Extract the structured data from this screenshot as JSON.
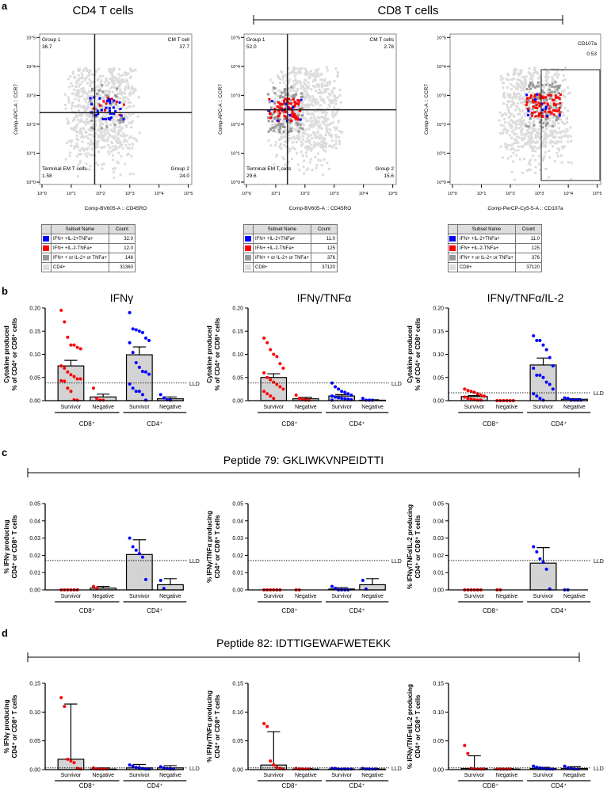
{
  "panel_letters": [
    "a",
    "b",
    "c",
    "d"
  ],
  "section_a": {
    "cd4_title": "CD4 T cells",
    "cd8_title": "CD8 T cells",
    "flow_plots": [
      {
        "y_label": "Comp-APC-A :: CCR7",
        "x_label": "Comp-BV605-A :: CD45RO",
        "quadrants": [
          {
            "name": "Group 1",
            "value": "36.7"
          },
          {
            "name": "CM T cell",
            "value": "37.7"
          },
          {
            "name": "Terminal EM T cells",
            "value": "1.58"
          },
          {
            "name": "Group 2",
            "value": "24.0"
          }
        ],
        "gate_x_log": 1.8,
        "gate_y_log": 2.4,
        "table": {
          "headers": [
            "Subset Name",
            "Count"
          ],
          "rows": [
            {
              "name": "IFN+ +IL-2+TNFa+",
              "count": "32.0",
              "color": "#0000ff"
            },
            {
              "name": "IFN+ +IL-2-TNFa+",
              "count": "12.0",
              "color": "#ff0000"
            },
            {
              "name": "IFN+ + or IL-2+ or TNFa+",
              "count": "146",
              "color": "#999999"
            },
            {
              "name": "CD4+",
              "count": "31360",
              "color": "#dddddd"
            }
          ]
        }
      },
      {
        "y_label": "Comp-APC-A :: CCR7",
        "x_label": "Comp-BV605-A :: CD45RO",
        "quadrants": [
          {
            "name": "Group 1",
            "value": "52.0"
          },
          {
            "name": "CM T cells",
            "value": "2.78"
          },
          {
            "name": "Terminal EM T cells",
            "value": "29.6"
          },
          {
            "name": "Group 2",
            "value": "15.6"
          }
        ],
        "gate_x_log": 1.4,
        "gate_y_log": 2.5,
        "table": {
          "headers": [
            "Subset Name",
            "Count"
          ],
          "rows": [
            {
              "name": "IFN+ +IL-2+TNFa+",
              "count": "11.0",
              "color": "#0000ff"
            },
            {
              "name": "IFN+ +IL-2-TNFa+",
              "count": "125",
              "color": "#ff0000"
            },
            {
              "name": "IFN+ + or IL-2+ or TNFa+",
              "count": "376",
              "color": "#999999"
            },
            {
              "name": "CD8+",
              "count": "37120",
              "color": "#dddddd"
            }
          ]
        }
      },
      {
        "y_label": "Comp-APC-A :: CCR7",
        "x_label": "Comp-PerCP-Cy5-5-A :: CD107a",
        "gate": {
          "name": "CD107a",
          "value": "0.53"
        },
        "table": {
          "headers": [
            "Subset Name",
            "Count"
          ],
          "rows": [
            {
              "name": "IFN+ +IL-2+TNFa+",
              "count": "11.0",
              "color": "#0000ff"
            },
            {
              "name": "IFN+ +IL-2-TNFa+",
              "count": "125",
              "color": "#ff0000"
            },
            {
              "name": "IFN+ + or IL-2+ or TNFa+",
              "count": "376",
              "color": "#999999"
            },
            {
              "name": "CD8+",
              "count": "37120",
              "color": "#dddddd"
            }
          ]
        }
      }
    ],
    "axis_ticks": [
      "10^0",
      "10^1",
      "10^2",
      "10^3",
      "10^4",
      "10^5"
    ]
  },
  "section_c_title": "Peptide 79: GKLIWKVNPEIDTTI",
  "section_d_title": "Peptide 82: IDTTIGEWAFWETEKK",
  "lld_label": "LLD",
  "categories": [
    "Survivor",
    "Negative",
    "Survivor",
    "Negative"
  ],
  "groups": [
    "CD8⁺",
    "CD4⁺"
  ],
  "colors": {
    "cd8": "#ff0000",
    "cd4": "#0000ff",
    "bar": "#d3d3d3",
    "gate_gray": "#999999",
    "background_cells": "#dcdcdc"
  },
  "chart_data": [
    {
      "type": "bar",
      "id": "b-ifng",
      "title": "IFNγ",
      "ylabel": [
        "Cytokine produced",
        "% of CD4⁺ or CD8⁺ cells"
      ],
      "ylim": [
        0,
        0.2
      ],
      "yticks": [
        "0.00",
        "0.05",
        "0.10",
        "0.15",
        "0.20"
      ],
      "lld": 0.038,
      "values": [
        0.075,
        0.008,
        0.099,
        0.004
      ],
      "errors": [
        0.012,
        0.006,
        0.017,
        0.004
      ],
      "points": [
        [
          0.195,
          0.17,
          0.137,
          0.12,
          0.12,
          0.115,
          0.112,
          0.075,
          0.07,
          0.062,
          0.056,
          0.052,
          0.047,
          0.047,
          0.043,
          0.042,
          0.027,
          0.02,
          0.002,
          0.001
        ],
        [
          0.027,
          0.005,
          0.001,
          0.001
        ],
        [
          0.19,
          0.155,
          0.153,
          0.15,
          0.147,
          0.135,
          0.13,
          0.125,
          0.104,
          0.082,
          0.072,
          0.063,
          0.062,
          0.057,
          0.036,
          0.027,
          0.02,
          0.02,
          0.013,
          0.001
        ],
        [
          0.013,
          0.006,
          0.002,
          0.001
        ]
      ]
    },
    {
      "type": "bar",
      "id": "b-ifng-tnfa",
      "title": "IFNγ/TNFα",
      "ylabel": [
        "Cytokine produced",
        "% of CD4⁺ or CD8⁺ cells"
      ],
      "ylim": [
        0,
        0.2
      ],
      "yticks": [
        "0.00",
        "0.05",
        "0.10",
        "0.15",
        "0.20"
      ],
      "lld": 0.038,
      "values": [
        0.05,
        0.004,
        0.01,
        0.001
      ],
      "errors": [
        0.008,
        0.003,
        0.003,
        0.001
      ],
      "points": [
        [
          0.135,
          0.125,
          0.11,
          0.1,
          0.095,
          0.08,
          0.07,
          0.06,
          0.05,
          0.045,
          0.04,
          0.035,
          0.03,
          0.025,
          0.02,
          0.015,
          0.01,
          0.005
        ],
        [
          0.012,
          0.005,
          0.002,
          0.001,
          0.001
        ],
        [
          0.038,
          0.03,
          0.025,
          0.02,
          0.018,
          0.015,
          0.012,
          0.01,
          0.008,
          0.006,
          0.005,
          0.004,
          0.003,
          0.002,
          0.001
        ],
        [
          0.005,
          0.001,
          0.001,
          0.001
        ]
      ]
    },
    {
      "type": "bar",
      "id": "b-ifng-tnfa-il2",
      "title": "IFNγ/TNFα/IL-2",
      "ylabel": [
        "Cytokine produced",
        "% of CD4⁺ or CD8⁺ cells"
      ],
      "ylim": [
        0,
        0.2
      ],
      "yticks": [
        "0.00",
        "0.05",
        "0.10",
        "0.15",
        "0.20"
      ],
      "lld": 0.017,
      "values": [
        0.009,
        0.0,
        0.077,
        0.003
      ],
      "errors": [
        0.002,
        0.0,
        0.015,
        0.001
      ],
      "points": [
        [
          0.025,
          0.022,
          0.02,
          0.018,
          0.015,
          0.012,
          0.01,
          0.008,
          0.005,
          0.003,
          0.002,
          0.001,
          0.001
        ],
        [
          0,
          0,
          0,
          0,
          0,
          0
        ],
        [
          0.14,
          0.13,
          0.13,
          0.12,
          0.11,
          0.093,
          0.075,
          0.07,
          0.055,
          0.055,
          0.05,
          0.04,
          0.035,
          0.025,
          0.015,
          0.01,
          0.005,
          0.001
        ],
        [
          0.006,
          0.005,
          0.001,
          0.001,
          0.001,
          0.001
        ]
      ]
    },
    {
      "type": "bar",
      "id": "c-ifng",
      "ylabel": [
        "% IFNγ producing",
        "CD4⁺ or CD8⁺ T cells"
      ],
      "ylim": [
        0,
        0.05
      ],
      "yticks": [
        "0.00",
        "0.01",
        "0.02",
        "0.03",
        "0.04",
        "0.05"
      ],
      "lld": 0.017,
      "values": [
        0,
        0.001,
        0.0205,
        0.003
      ],
      "errors": [
        0,
        0.001,
        0.0085,
        0.0035
      ],
      "points": [
        [
          0,
          0,
          0,
          0,
          0,
          0
        ],
        [
          0.002,
          0.001
        ],
        [
          0.03,
          0.025,
          0.023,
          0.021,
          0.019,
          0.006
        ],
        [
          0.0055,
          0.0008
        ]
      ]
    },
    {
      "type": "bar",
      "id": "c-ifng-tnfa",
      "ylabel": [
        "% IFNγ/TNFα producing",
        "CD4⁺ or CD8⁺ T cells"
      ],
      "ylim": [
        0,
        0.05
      ],
      "yticks": [
        "0.00",
        "0.01",
        "0.02",
        "0.03",
        "0.04",
        "0.05"
      ],
      "lld": 0.017,
      "values": [
        0,
        0,
        0.0005,
        0.003
      ],
      "errors": [
        0,
        0,
        0.0008,
        0.0035
      ],
      "points": [
        [
          0,
          0,
          0,
          0,
          0,
          0
        ],
        [
          0,
          0
        ],
        [
          0.002,
          0.001,
          0,
          0,
          0,
          0
        ],
        [
          0.0055,
          0.0005
        ]
      ]
    },
    {
      "type": "bar",
      "id": "c-ifng-tnfa-il2",
      "ylabel": [
        "% IFNγ/TNFα/IL-2 producing",
        "CD4⁺ or CD8⁺ T cells"
      ],
      "ylim": [
        0,
        0.05
      ],
      "yticks": [
        "0.00",
        "0.01",
        "0.02",
        "0.03",
        "0.04",
        "0.05"
      ],
      "lld": 0.017,
      "values": [
        0,
        0,
        0.0155,
        0
      ],
      "errors": [
        0,
        0,
        0.009,
        0
      ],
      "points": [
        [
          0,
          0,
          0,
          0,
          0,
          0
        ],
        [
          0,
          0
        ],
        [
          0.025,
          0.022,
          0.018,
          0.016,
          0.012,
          0.0005
        ],
        [
          0,
          0
        ]
      ]
    },
    {
      "type": "bar",
      "id": "d-ifng",
      "ylabel": [
        "% IFNγ producing",
        "CD4⁺ or CD8⁺ T cells"
      ],
      "ylim": [
        0,
        0.15
      ],
      "yticks": [
        "0.00",
        "0.05",
        "0.10",
        "0.15"
      ],
      "lld": 0.003,
      "values": [
        0.018,
        0.001,
        0.003,
        0.003
      ],
      "errors": [
        0.096,
        0.002,
        0.006,
        0.004
      ],
      "points": [
        [
          0.125,
          0.11,
          0.018,
          0.015,
          0.012,
          0.002,
          0.001
        ],
        [
          0.003,
          0.001,
          0.001,
          0.001,
          0.001
        ],
        [
          0.008,
          0.006,
          0.004,
          0.003,
          0.002,
          0.001,
          0.001
        ],
        [
          0.005,
          0.003,
          0.002,
          0.001,
          0.001
        ]
      ]
    },
    {
      "type": "bar",
      "id": "d-ifng-tnfa",
      "ylabel": [
        "% IFNγ/TNFα producing",
        "CD4⁺ or CD8⁺ T cells"
      ],
      "ylim": [
        0,
        0.15
      ],
      "yticks": [
        "0.00",
        "0.05",
        "0.10",
        "0.15"
      ],
      "lld": 0.003,
      "values": [
        0.008,
        0.001,
        0.001,
        0.001
      ],
      "errors": [
        0.058,
        0.001,
        0.001,
        0.001
      ],
      "points": [
        [
          0.08,
          0.075,
          0.015,
          0.008,
          0.004,
          0.002,
          0.001
        ],
        [
          0.002,
          0.001,
          0.001,
          0.001,
          0.001
        ],
        [
          0.002,
          0.002,
          0.001,
          0.001,
          0.001,
          0.001,
          0.001
        ],
        [
          0.002,
          0.001,
          0.001,
          0.001,
          0.001
        ]
      ]
    },
    {
      "type": "bar",
      "id": "d-ifng-tnfa-il2",
      "ylabel": [
        "% IFNγ/TNFα/IL-2 producing",
        "CD4⁺ or CD8⁺ T cells"
      ],
      "ylim": [
        0,
        0.15
      ],
      "yticks": [
        "0.00",
        "0.05",
        "0.10",
        "0.15"
      ],
      "lld": 0.003,
      "values": [
        0.002,
        0.001,
        0.002,
        0.002
      ],
      "errors": [
        0.022,
        0.001,
        0.002,
        0.003
      ],
      "points": [
        [
          0.042,
          0.028,
          0.002,
          0.001,
          0.001,
          0.001,
          0.001
        ],
        [
          0.001,
          0.001,
          0.001,
          0.001,
          0.001
        ],
        [
          0.006,
          0.004,
          0.003,
          0.002,
          0.001,
          0.001,
          0.001
        ],
        [
          0.006,
          0.003,
          0.002,
          0.001,
          0.001
        ]
      ]
    }
  ]
}
